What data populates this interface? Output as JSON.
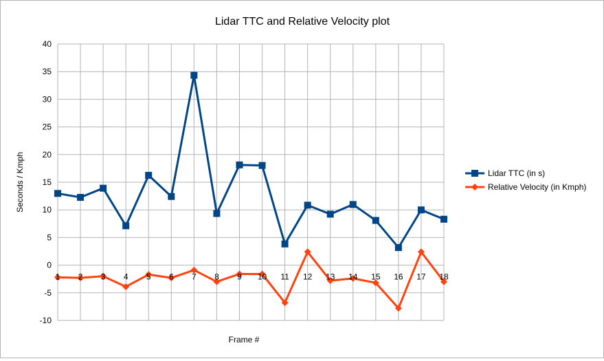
{
  "chart_data": {
    "type": "line",
    "title": "Lidar TTC and Relative Velocity plot",
    "xlabel": "Frame #",
    "ylabel": "Seconds / Kmph",
    "categories": [
      "1",
      "2",
      "3",
      "4",
      "5",
      "6",
      "7",
      "8",
      "9",
      "10",
      "11",
      "12",
      "13",
      "14",
      "15",
      "16",
      "17",
      "18"
    ],
    "y_ticks": [
      "-10",
      "-5",
      "0",
      "5",
      "10",
      "15",
      "20",
      "25",
      "30",
      "35",
      "40"
    ],
    "ylim": [
      -10,
      40
    ],
    "grid": true,
    "legend_position": "right",
    "series": [
      {
        "name": "Lidar TTC (in s)",
        "color": "#004586",
        "marker": "square",
        "values": [
          12.97,
          12.26,
          13.92,
          7.12,
          16.25,
          12.42,
          34.34,
          9.34,
          18.13,
          18.03,
          3.83,
          10.85,
          9.22,
          10.97,
          8.09,
          3.18,
          9.99,
          8.31
        ]
      },
      {
        "name": "Relative Velocity (in Kmph)",
        "color": "#ff420e",
        "marker": "diamond",
        "values": [
          -2.2,
          -2.3,
          -2.0,
          -3.9,
          -1.7,
          -2.3,
          -0.9,
          -3.0,
          -1.6,
          -1.6,
          -6.8,
          2.4,
          -2.8,
          -2.4,
          -3.2,
          -7.8,
          2.4,
          -3.0
        ]
      }
    ]
  }
}
